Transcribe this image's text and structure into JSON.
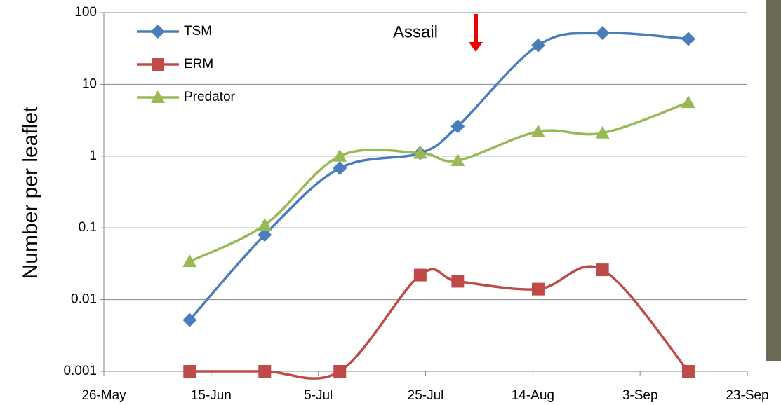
{
  "chart_data": {
    "type": "line",
    "y_label": "Number per leaflet",
    "annotation": "Assail",
    "x": [
      "11-Jun",
      "25-Jun",
      "9-Jul",
      "24-Jul",
      "31-Jul",
      "15-Aug",
      "27-Aug",
      "12-Sep"
    ],
    "series": [
      {
        "name": "TSM",
        "color": "#4a7ebb",
        "marker": "diamond",
        "values": [
          0.0052,
          0.08,
          0.68,
          1.1,
          2.6,
          35,
          52,
          43
        ]
      },
      {
        "name": "ERM",
        "color": "#be4b48",
        "marker": "square",
        "values": [
          0.001,
          0.001,
          0.001,
          0.022,
          0.018,
          0.014,
          0.026,
          0.001
        ]
      },
      {
        "name": "Predator",
        "color": "#98b954",
        "marker": "triangle",
        "values": [
          0.034,
          0.11,
          1.0,
          1.1,
          0.87,
          2.2,
          2.1,
          5.6
        ]
      }
    ],
    "xlim": [
      "26-May",
      "23-Sep"
    ],
    "xticks": [
      "26-May",
      "15-Jun",
      "5-Jul",
      "25-Jul",
      "14-Aug",
      "3-Sep",
      "23-Sep"
    ],
    "ylim": [
      0.001,
      100
    ],
    "yticks": [
      0.001,
      0.01,
      0.1,
      1,
      10,
      100
    ],
    "log_y": true,
    "grid": true,
    "legend": "upper-left"
  }
}
